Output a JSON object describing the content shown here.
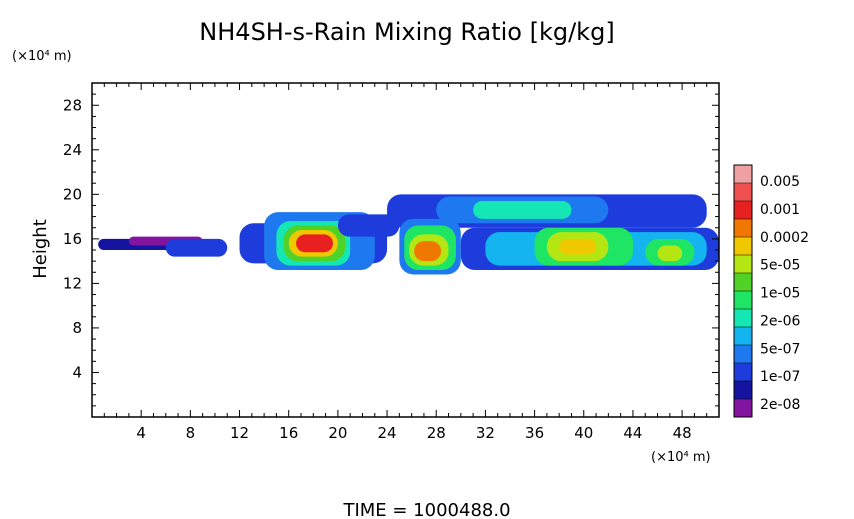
{
  "chart_data": {
    "type": "heatmap",
    "title": "NH4SH-s-Rain Mixing Ratio [kg/kg]",
    "xlabel": "",
    "ylabel": "Height",
    "x_unit": "(×10⁴ m)",
    "y_unit": "(×10⁴ m)",
    "xlim": [
      0,
      51
    ],
    "ylim": [
      0,
      30
    ],
    "x_ticks": [
      4,
      8,
      12,
      16,
      20,
      24,
      28,
      32,
      36,
      40,
      44,
      48
    ],
    "y_ticks": [
      4,
      8,
      12,
      16,
      20,
      24,
      28
    ],
    "colorbar": {
      "labels": [
        "0.005",
        "0.001",
        "0.0002",
        "5e-05",
        "1e-05",
        "2e-06",
        "5e-07",
        "1e-07",
        "2e-08"
      ],
      "colors": [
        "#f0a0a0",
        "#f05050",
        "#e82020",
        "#f07800",
        "#f0c800",
        "#b4e614",
        "#50d228",
        "#1ee664",
        "#14e6b4",
        "#14b4f0",
        "#1e78f0",
        "#1e3cdc",
        "#1414a0",
        "#8214a0"
      ]
    },
    "cells": [
      {
        "x0": 0.5,
        "x1": 8,
        "y0": 15,
        "y1": 16,
        "level": 12
      },
      {
        "x0": 3,
        "x1": 9,
        "y0": 15.4,
        "y1": 16.2,
        "level": 13
      },
      {
        "x0": 6,
        "x1": 11,
        "y0": 14.4,
        "y1": 16,
        "level": 11
      },
      {
        "x0": 12,
        "x1": 24,
        "y0": 13.8,
        "y1": 17.4,
        "level": 11
      },
      {
        "x0": 14,
        "x1": 23,
        "y0": 13.2,
        "y1": 18.4,
        "level": 10
      },
      {
        "x0": 15,
        "x1": 21,
        "y0": 13.6,
        "y1": 17.6,
        "level": 8
      },
      {
        "x0": 15.6,
        "x1": 20.6,
        "y0": 14,
        "y1": 17.2,
        "level": 6
      },
      {
        "x0": 16,
        "x1": 20,
        "y0": 14.4,
        "y1": 16.8,
        "level": 4
      },
      {
        "x0": 16.6,
        "x1": 19.6,
        "y0": 14.8,
        "y1": 16.4,
        "level": 2
      },
      {
        "x0": 20,
        "x1": 25,
        "y0": 16.2,
        "y1": 18.2,
        "level": 11
      },
      {
        "x0": 24,
        "x1": 50,
        "y0": 17,
        "y1": 20,
        "level": 11
      },
      {
        "x0": 28,
        "x1": 42,
        "y0": 17.4,
        "y1": 19.8,
        "level": 10
      },
      {
        "x0": 31,
        "x1": 39,
        "y0": 17.8,
        "y1": 19.4,
        "level": 8
      },
      {
        "x0": 25,
        "x1": 30,
        "y0": 12.8,
        "y1": 17.8,
        "level": 10
      },
      {
        "x0": 25.4,
        "x1": 29.6,
        "y0": 13.2,
        "y1": 17.2,
        "level": 7
      },
      {
        "x0": 25.8,
        "x1": 29,
        "y0": 13.6,
        "y1": 16.4,
        "level": 5
      },
      {
        "x0": 26.2,
        "x1": 28.4,
        "y0": 14,
        "y1": 15.8,
        "level": 3
      },
      {
        "x0": 30,
        "x1": 51,
        "y0": 13.2,
        "y1": 17,
        "level": 11
      },
      {
        "x0": 32,
        "x1": 50,
        "y0": 13.6,
        "y1": 16.6,
        "level": 9
      },
      {
        "x0": 36,
        "x1": 44,
        "y0": 13.6,
        "y1": 17,
        "level": 7
      },
      {
        "x0": 37,
        "x1": 42,
        "y0": 14,
        "y1": 16.6,
        "level": 5
      },
      {
        "x0": 38,
        "x1": 41,
        "y0": 14.6,
        "y1": 16,
        "level": 4
      },
      {
        "x0": 45,
        "x1": 49,
        "y0": 13.6,
        "y1": 16,
        "level": 7
      },
      {
        "x0": 46,
        "x1": 48,
        "y0": 14,
        "y1": 15.4,
        "level": 5
      }
    ]
  },
  "footer": {
    "time_label": "TIME  =  1000488.0"
  }
}
